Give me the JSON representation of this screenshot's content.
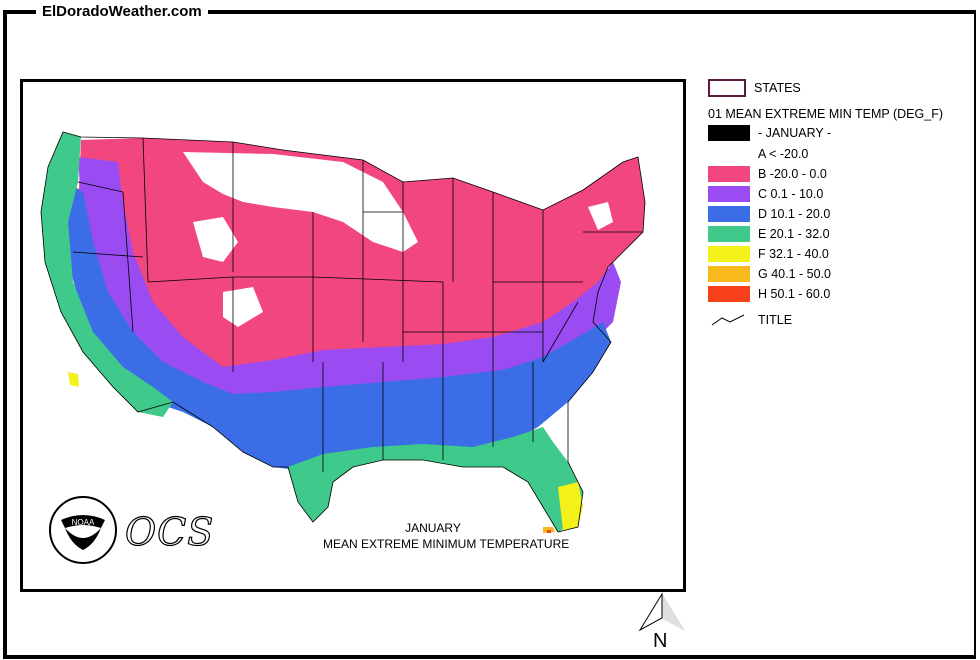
{
  "site": {
    "title": "ElDoradoWeather.com"
  },
  "map": {
    "caption_line1": "JANUARY",
    "caption_line2": "MEAN EXTREME MINIMUM TEMPERATURE",
    "agency_text": "OCS",
    "logo_text": "NOAA",
    "boundary_color": "#000000",
    "background": "#ffffff"
  },
  "legend": {
    "states_label": "STATES",
    "heading": "01 MEAN EXTREME MIN TEMP (DEG_F)",
    "classes": [
      {
        "code": "",
        "label": "- JANUARY -",
        "color": "#000000"
      },
      {
        "code": "A",
        "label": "A < -20.0",
        "color": "#ffffff"
      },
      {
        "code": "B",
        "label": "B -20.0 - 0.0",
        "color": "#f2467f"
      },
      {
        "code": "C",
        "label": "C 0.1 - 10.0",
        "color": "#9a4cf2"
      },
      {
        "code": "D",
        "label": "D 10.1 - 20.0",
        "color": "#3b6ee6"
      },
      {
        "code": "E",
        "label": "E 20.1 - 32.0",
        "color": "#3fc98a"
      },
      {
        "code": "F",
        "label": "F 32.1 - 40.0",
        "color": "#f2f21a"
      },
      {
        "code": "G",
        "label": "G 40.1 - 50.0",
        "color": "#f7b91c"
      },
      {
        "code": "H",
        "label": "H 50.1 - 60.0",
        "color": "#f7401c"
      }
    ],
    "title_label": "TITLE"
  },
  "north": {
    "label": "N"
  }
}
